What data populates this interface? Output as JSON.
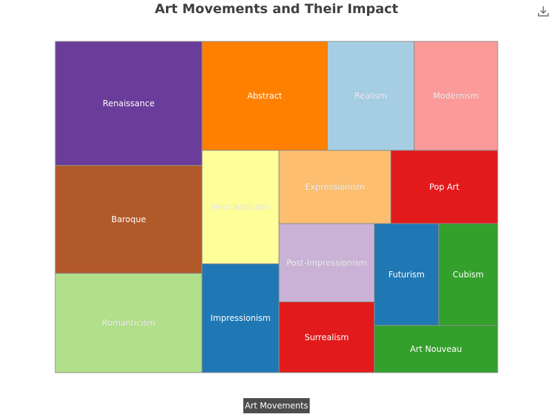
{
  "title": "Art Movements and Their Impact",
  "legend_label": "Art Movements",
  "download_icon": "download-icon",
  "chart_data": {
    "type": "treemap",
    "title": "Art Movements and Their Impact",
    "series_name": "Art Movements",
    "items": [
      {
        "name": "Renaissance",
        "value": 100,
        "color": "#6a3d9a"
      },
      {
        "name": "Baroque",
        "value": 87,
        "color": "#b15928"
      },
      {
        "name": "Romanticism",
        "value": 80,
        "color": "#b2df8a"
      },
      {
        "name": "Abstract",
        "value": 75,
        "color": "#ff7f00"
      },
      {
        "name": "Realism",
        "value": 52,
        "color": "#a6cee3"
      },
      {
        "name": "Modernism",
        "value": 50,
        "color": "#fb9a99"
      },
      {
        "name": "Neoclassicism",
        "value": 48,
        "color": "#ffff99"
      },
      {
        "name": "Impressionism",
        "value": 46,
        "color": "#1f78b4"
      },
      {
        "name": "Expressionism",
        "value": 45,
        "color": "#fdbf6f"
      },
      {
        "name": "Pop Art",
        "value": 43,
        "color": "#e31a1c"
      },
      {
        "name": "Post-Impressionism",
        "value": 41,
        "color": "#cab2d6"
      },
      {
        "name": "Surrealism",
        "value": 37,
        "color": "#e31a1c"
      },
      {
        "name": "Futurism",
        "value": 36,
        "color": "#1f78b4"
      },
      {
        "name": "Cubism",
        "value": 33,
        "color": "#33a02c"
      },
      {
        "name": "Art Nouveau",
        "value": 32,
        "color": "#33a02c"
      }
    ]
  }
}
